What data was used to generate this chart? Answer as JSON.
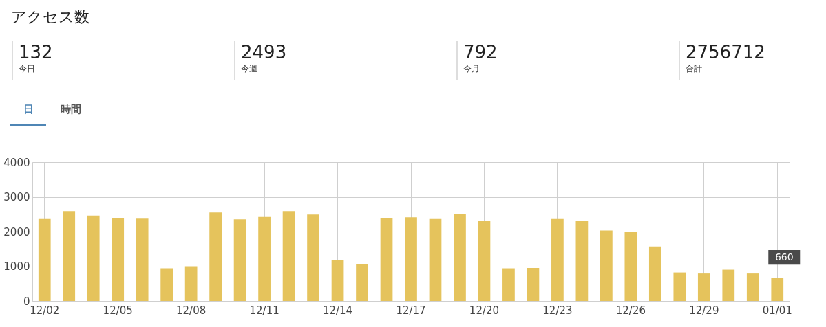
{
  "chart_data": {
    "type": "bar",
    "title": "アクセス数",
    "annotations": [
      "132",
      "今日",
      "2493",
      "今週",
      "792",
      "今月",
      "2756712",
      "合計",
      "日",
      "時間"
    ],
    "categories": [
      "12/02",
      null,
      null,
      "12/05",
      null,
      null,
      "12/08",
      null,
      null,
      "12/11",
      null,
      null,
      "12/14",
      null,
      null,
      "12/17",
      null,
      null,
      "12/20",
      null,
      null,
      "12/23",
      null,
      null,
      "12/26",
      null,
      null,
      "12/29",
      null,
      null,
      "01/01"
    ],
    "values": [
      2360,
      2590,
      2460,
      2390,
      2370,
      940,
      1000,
      2550,
      2350,
      2420,
      2590,
      2490,
      1170,
      1060,
      2380,
      2410,
      2360,
      2510,
      2300,
      940,
      950,
      2360,
      2300,
      2030,
      1990,
      1570,
      820,
      790,
      900,
      790,
      660
    ],
    "value_labels": [
      null,
      null,
      null,
      null,
      null,
      null,
      null,
      null,
      null,
      null,
      null,
      null,
      null,
      null,
      null,
      null,
      null,
      null,
      null,
      null,
      null,
      null,
      null,
      null,
      null,
      null,
      null,
      null,
      null,
      null,
      "660"
    ],
    "color": "#e5c35c",
    "ylim": [
      0,
      4000
    ],
    "yticks": [
      0,
      1000,
      2000,
      3000,
      4000
    ],
    "grid": true
  }
}
